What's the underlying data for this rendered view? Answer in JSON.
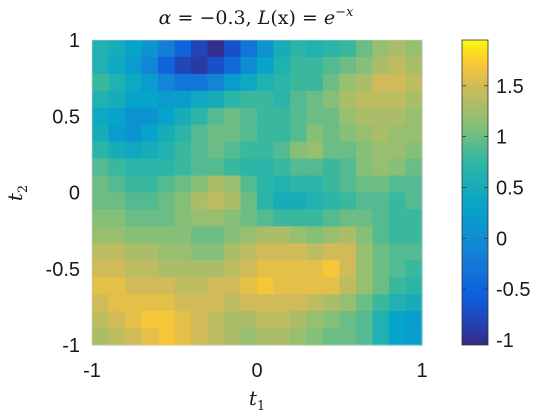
{
  "chart_data": {
    "type": "heatmap",
    "title": "α = −0.3, L(x) = e^−x",
    "title_parts": {
      "alpha_sym": "α",
      "alpha_eq": " = −0.3, ",
      "L": "L",
      "L_arg": "(x) = ",
      "e": "e",
      "exp": "−x"
    },
    "xlabel": {
      "base": "t",
      "sub": "1"
    },
    "ylabel": {
      "base": "t",
      "sub": "2"
    },
    "xlim": [
      -1,
      1
    ],
    "ylim": [
      -1,
      1
    ],
    "xticks": [
      -1,
      0,
      1
    ],
    "xtick_labels": [
      "-1",
      "0",
      "1"
    ],
    "yticks": [
      -1,
      -0.5,
      0,
      0.5,
      1
    ],
    "ytick_labels": [
      "-1",
      "-0.5",
      "0",
      "0.5",
      "1"
    ],
    "colorbar": {
      "colormap": "parula",
      "clim": [
        -1.05,
        1.95
      ],
      "ticks": [
        -1,
        -0.5,
        0,
        0.5,
        1,
        1.5
      ],
      "tick_labels": [
        "-1",
        "-0.5",
        "0",
        "0.5",
        "1",
        "1.5"
      ]
    },
    "grid": false,
    "z_rows_top_to_bottom": [
      [
        0.6,
        0.5,
        0.3,
        0.1,
        -0.2,
        -0.5,
        -0.8,
        -1.0,
        -0.7,
        -0.3,
        0.1,
        0.5,
        0.7,
        0.6,
        0.7,
        0.8,
        1.0,
        1.2,
        1.3,
        1.2
      ],
      [
        0.6,
        0.4,
        0.2,
        -0.1,
        -0.5,
        -0.8,
        -0.9,
        -0.7,
        -0.4,
        0.0,
        0.3,
        0.6,
        0.8,
        0.8,
        0.9,
        1.0,
        1.1,
        1.3,
        1.4,
        1.3
      ],
      [
        0.8,
        0.6,
        0.4,
        0.2,
        -0.1,
        -0.3,
        -0.3,
        -0.1,
        0.2,
        0.4,
        0.6,
        0.7,
        0.8,
        0.8,
        1.0,
        1.2,
        1.3,
        1.5,
        1.5,
        1.4
      ],
      [
        0.6,
        0.5,
        0.3,
        0.3,
        0.2,
        0.2,
        0.4,
        0.5,
        0.7,
        0.8,
        0.8,
        0.7,
        0.9,
        1.0,
        1.1,
        1.3,
        1.4,
        1.4,
        1.4,
        1.3
      ],
      [
        0.4,
        0.3,
        0.1,
        0.1,
        0.3,
        0.5,
        0.7,
        0.9,
        1.0,
        0.9,
        0.8,
        0.8,
        0.9,
        1.0,
        1.0,
        1.2,
        1.3,
        1.3,
        1.3,
        1.2
      ],
      [
        0.5,
        0.2,
        0.1,
        0.3,
        0.5,
        0.7,
        0.9,
        1.0,
        1.0,
        0.9,
        0.8,
        0.8,
        0.9,
        1.1,
        1.0,
        1.1,
        1.2,
        1.3,
        1.2,
        1.2
      ],
      [
        0.7,
        0.5,
        0.4,
        0.5,
        0.6,
        0.8,
        0.9,
        1.0,
        0.9,
        0.8,
        0.8,
        0.9,
        1.1,
        1.2,
        1.0,
        1.0,
        1.1,
        1.2,
        1.2,
        1.1
      ],
      [
        0.9,
        0.8,
        0.7,
        0.7,
        0.7,
        0.8,
        0.9,
        0.9,
        0.8,
        0.7,
        0.7,
        0.8,
        0.9,
        0.9,
        0.8,
        0.9,
        1.1,
        1.2,
        1.1,
        1.0
      ],
      [
        1.0,
        0.9,
        0.8,
        0.8,
        0.9,
        1.0,
        1.1,
        1.3,
        1.2,
        0.9,
        0.7,
        0.6,
        0.7,
        0.7,
        0.8,
        0.9,
        1.0,
        1.0,
        0.9,
        0.9
      ],
      [
        1.0,
        1.0,
        0.9,
        0.9,
        1.0,
        1.1,
        1.3,
        1.4,
        1.3,
        1.0,
        0.7,
        0.5,
        0.5,
        0.6,
        0.7,
        0.8,
        0.9,
        0.9,
        0.8,
        0.9
      ],
      [
        1.1,
        1.1,
        1.0,
        1.0,
        1.0,
        1.1,
        1.2,
        1.2,
        1.1,
        1.0,
        0.9,
        0.8,
        0.8,
        0.8,
        0.9,
        1.0,
        1.0,
        0.9,
        0.8,
        0.8
      ],
      [
        1.2,
        1.2,
        1.1,
        1.1,
        1.1,
        1.1,
        1.0,
        1.0,
        1.1,
        1.2,
        1.3,
        1.3,
        1.2,
        1.1,
        1.2,
        1.3,
        1.1,
        0.9,
        0.8,
        0.8
      ],
      [
        1.4,
        1.4,
        1.3,
        1.3,
        1.2,
        1.2,
        1.1,
        1.1,
        1.3,
        1.4,
        1.5,
        1.5,
        1.5,
        1.4,
        1.5,
        1.5,
        1.2,
        1.0,
        0.9,
        0.9
      ],
      [
        1.5,
        1.5,
        1.4,
        1.4,
        1.3,
        1.3,
        1.3,
        1.3,
        1.4,
        1.5,
        1.6,
        1.6,
        1.6,
        1.6,
        1.7,
        1.5,
        1.2,
        1.0,
        0.9,
        0.8
      ],
      [
        1.6,
        1.6,
        1.5,
        1.5,
        1.5,
        1.4,
        1.4,
        1.5,
        1.5,
        1.6,
        1.7,
        1.6,
        1.6,
        1.6,
        1.6,
        1.4,
        1.2,
        1.0,
        0.8,
        0.7
      ],
      [
        1.5,
        1.6,
        1.6,
        1.6,
        1.6,
        1.5,
        1.5,
        1.5,
        1.4,
        1.5,
        1.5,
        1.5,
        1.5,
        1.4,
        1.3,
        1.2,
        1.0,
        0.8,
        0.6,
        0.5
      ],
      [
        1.4,
        1.5,
        1.6,
        1.7,
        1.7,
        1.6,
        1.5,
        1.4,
        1.3,
        1.3,
        1.4,
        1.4,
        1.3,
        1.2,
        1.1,
        1.0,
        0.9,
        0.6,
        0.3,
        0.2
      ],
      [
        1.3,
        1.4,
        1.5,
        1.6,
        1.7,
        1.6,
        1.5,
        1.4,
        1.3,
        1.2,
        1.3,
        1.3,
        1.2,
        1.1,
        1.0,
        1.0,
        0.9,
        0.6,
        0.3,
        0.2
      ]
    ]
  }
}
